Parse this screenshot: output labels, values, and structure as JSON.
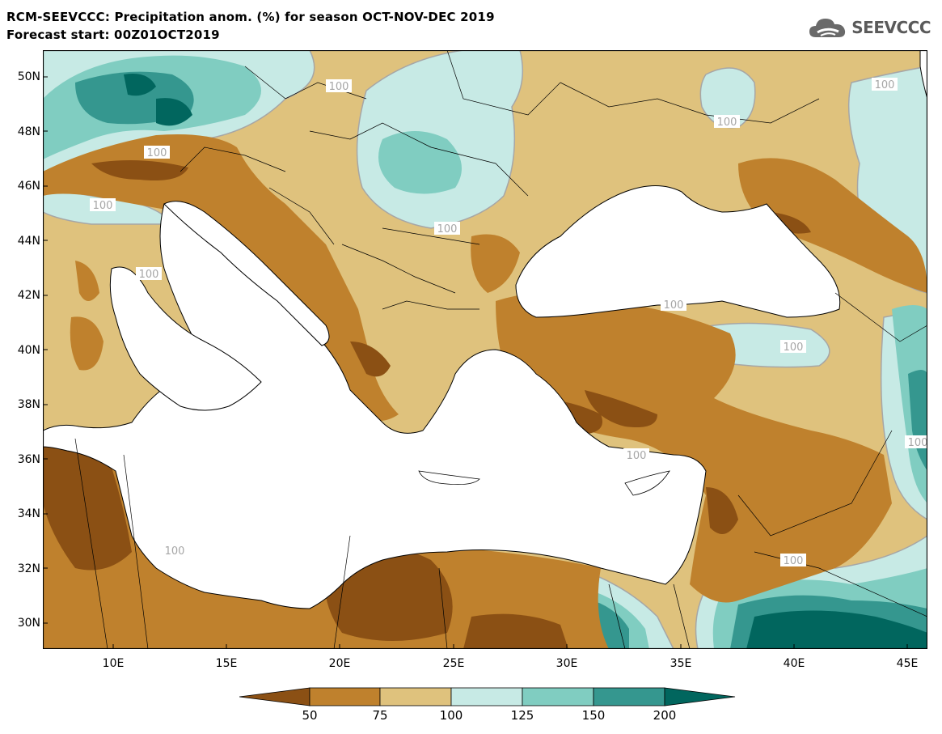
{
  "header": {
    "title_line1": "RCM-SEEVCCC: Precipitation anom. (%) for season OCT-NOV-DEC 2019",
    "title_line2": "Forecast start: 00Z01OCT2019"
  },
  "logo": {
    "text": "SEEVCCC",
    "icon": "cloud-icon"
  },
  "map": {
    "variable": "Precipitation anomaly (%)",
    "lat_labels": [
      "50N",
      "48N",
      "46N",
      "44N",
      "42N",
      "40N",
      "38N",
      "36N",
      "34N",
      "32N",
      "30N"
    ],
    "lon_labels": [
      "10E",
      "15E",
      "20E",
      "25E",
      "30E",
      "35E",
      "40E",
      "45E"
    ],
    "contour_labels": [
      "100",
      "100",
      "100",
      "100",
      "100",
      "100",
      "100",
      "100",
      "100",
      "100",
      "100",
      "100",
      "100"
    ],
    "sea_color": "#ffffff",
    "coastline_color": "#000000",
    "contour_line_color": "#a6a6a6"
  },
  "colorbar": {
    "tick_labels": [
      "50",
      "75",
      "100",
      "125",
      "150",
      "200"
    ],
    "colors": [
      "#8b5014",
      "#bf812d",
      "#dfc27d",
      "#c7eae5",
      "#80cdc1",
      "#35978f",
      "#01665e"
    ]
  }
}
